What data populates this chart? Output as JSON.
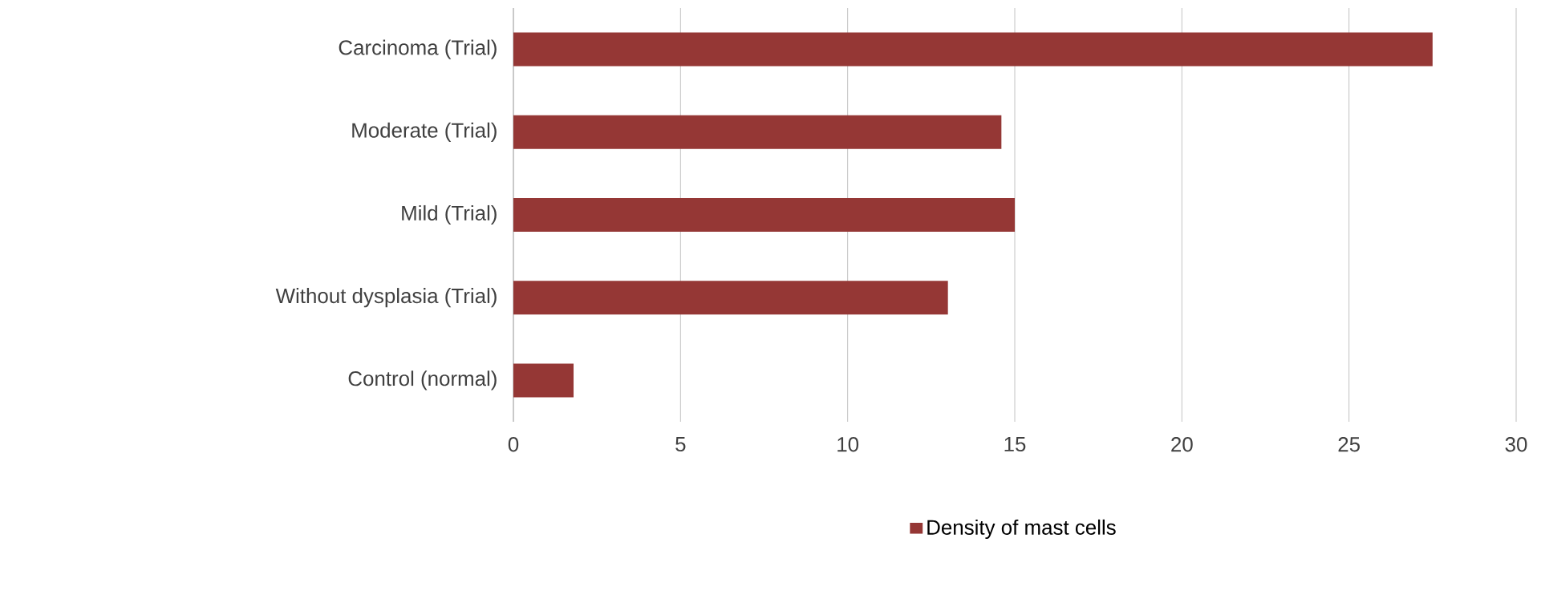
{
  "chart_data": {
    "type": "bar",
    "orientation": "horizontal",
    "categories": [
      "Carcinoma (Trial)",
      "Moderate (Trial)",
      "Mild (Trial)",
      "Without dysplasia (Trial)",
      "Control (normal)"
    ],
    "series": [
      {
        "name": "Density of mast cells",
        "color": "#953735",
        "values": [
          27.5,
          14.6,
          15.0,
          13.0,
          1.8
        ]
      }
    ],
    "xlim": [
      0,
      30
    ],
    "xticks": [
      0,
      5,
      10,
      15,
      20,
      25,
      30
    ],
    "grid": "x",
    "legend": "bottom"
  }
}
